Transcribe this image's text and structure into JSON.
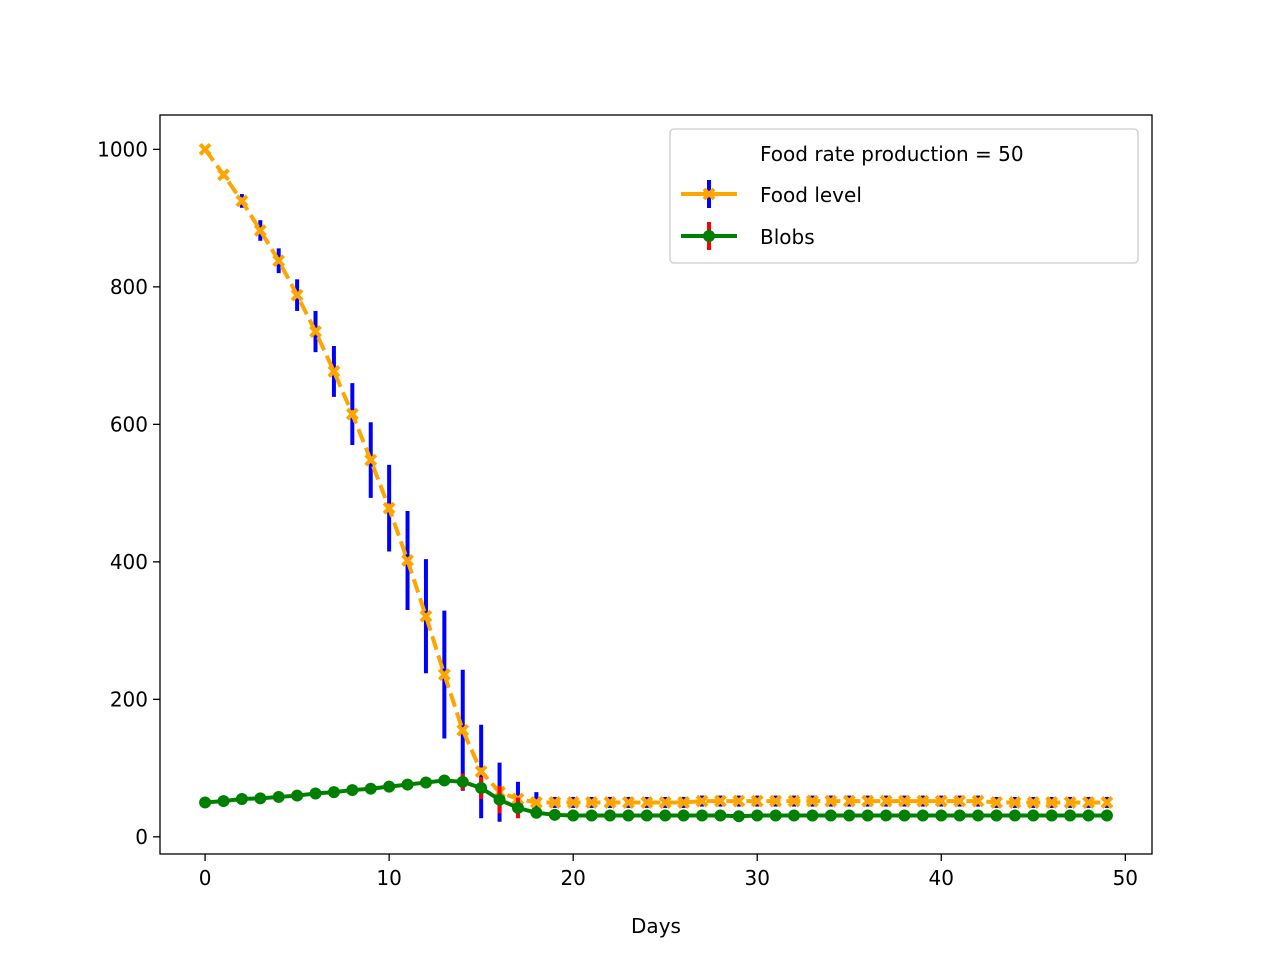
{
  "chart_data": {
    "type": "line",
    "title": "",
    "xlabel": "Days",
    "ylabel": "",
    "xlim": [
      -2.45,
      51.45
    ],
    "ylim": [
      -25,
      1050
    ],
    "xticks": [
      0,
      10,
      20,
      30,
      40,
      50
    ],
    "yticks": [
      0,
      200,
      400,
      600,
      800,
      1000
    ],
    "grid": false,
    "legend_position": "top-right",
    "legend_note": "Food rate production = 50",
    "x": [
      0,
      1,
      2,
      3,
      4,
      5,
      6,
      7,
      8,
      9,
      10,
      11,
      12,
      13,
      14,
      15,
      16,
      17,
      18,
      19,
      20,
      21,
      22,
      23,
      24,
      25,
      26,
      27,
      28,
      29,
      30,
      31,
      32,
      33,
      34,
      35,
      36,
      37,
      38,
      39,
      40,
      41,
      42,
      43,
      44,
      45,
      46,
      47,
      48,
      49
    ],
    "series": [
      {
        "name": "Food level",
        "line_color": "#ffa500",
        "error_color": "#0000ff",
        "marker": "x",
        "dashed": true,
        "values": [
          1000,
          963,
          925,
          882,
          838,
          788,
          735,
          677,
          615,
          548,
          478,
          402,
          321,
          236,
          155,
          95,
          65,
          55,
          50,
          50,
          50,
          50,
          50,
          50,
          50,
          50,
          50,
          52,
          52,
          52,
          52,
          52,
          52,
          52,
          52,
          52,
          52,
          52,
          52,
          52,
          52,
          52,
          52,
          50,
          50,
          50,
          50,
          50,
          50,
          50
        ],
        "errors": [
          0,
          5,
          10,
          15,
          18,
          23,
          30,
          37,
          45,
          55,
          63,
          72,
          83,
          93,
          88,
          68,
          43,
          25,
          15,
          8,
          8,
          8,
          8,
          8,
          8,
          8,
          8,
          8,
          8,
          8,
          8,
          8,
          8,
          8,
          8,
          8,
          8,
          8,
          8,
          8,
          8,
          8,
          8,
          8,
          8,
          8,
          8,
          8,
          8,
          8
        ]
      },
      {
        "name": "Blobs",
        "line_color": "#008000",
        "error_color": "#ff0000",
        "marker": "o",
        "dashed": false,
        "values": [
          50,
          52,
          55,
          56,
          58,
          60,
          63,
          65,
          68,
          70,
          73,
          76,
          79,
          82,
          80,
          71,
          54,
          42,
          35,
          32,
          31,
          31,
          31,
          31,
          31,
          31,
          31,
          31,
          31,
          30,
          31,
          31,
          31,
          31,
          31,
          31,
          31,
          31,
          31,
          31,
          31,
          31,
          31,
          31,
          31,
          31,
          31,
          31,
          31,
          31
        ],
        "errors": [
          0,
          0,
          0,
          0,
          0,
          0,
          0,
          0,
          0,
          0,
          0,
          0,
          0,
          0,
          12,
          16,
          20,
          15,
          5,
          3,
          3,
          3,
          3,
          3,
          3,
          3,
          3,
          3,
          3,
          3,
          3,
          3,
          3,
          3,
          3,
          3,
          3,
          3,
          3,
          3,
          3,
          3,
          3,
          3,
          3,
          3,
          3,
          3,
          3,
          3
        ]
      }
    ]
  }
}
